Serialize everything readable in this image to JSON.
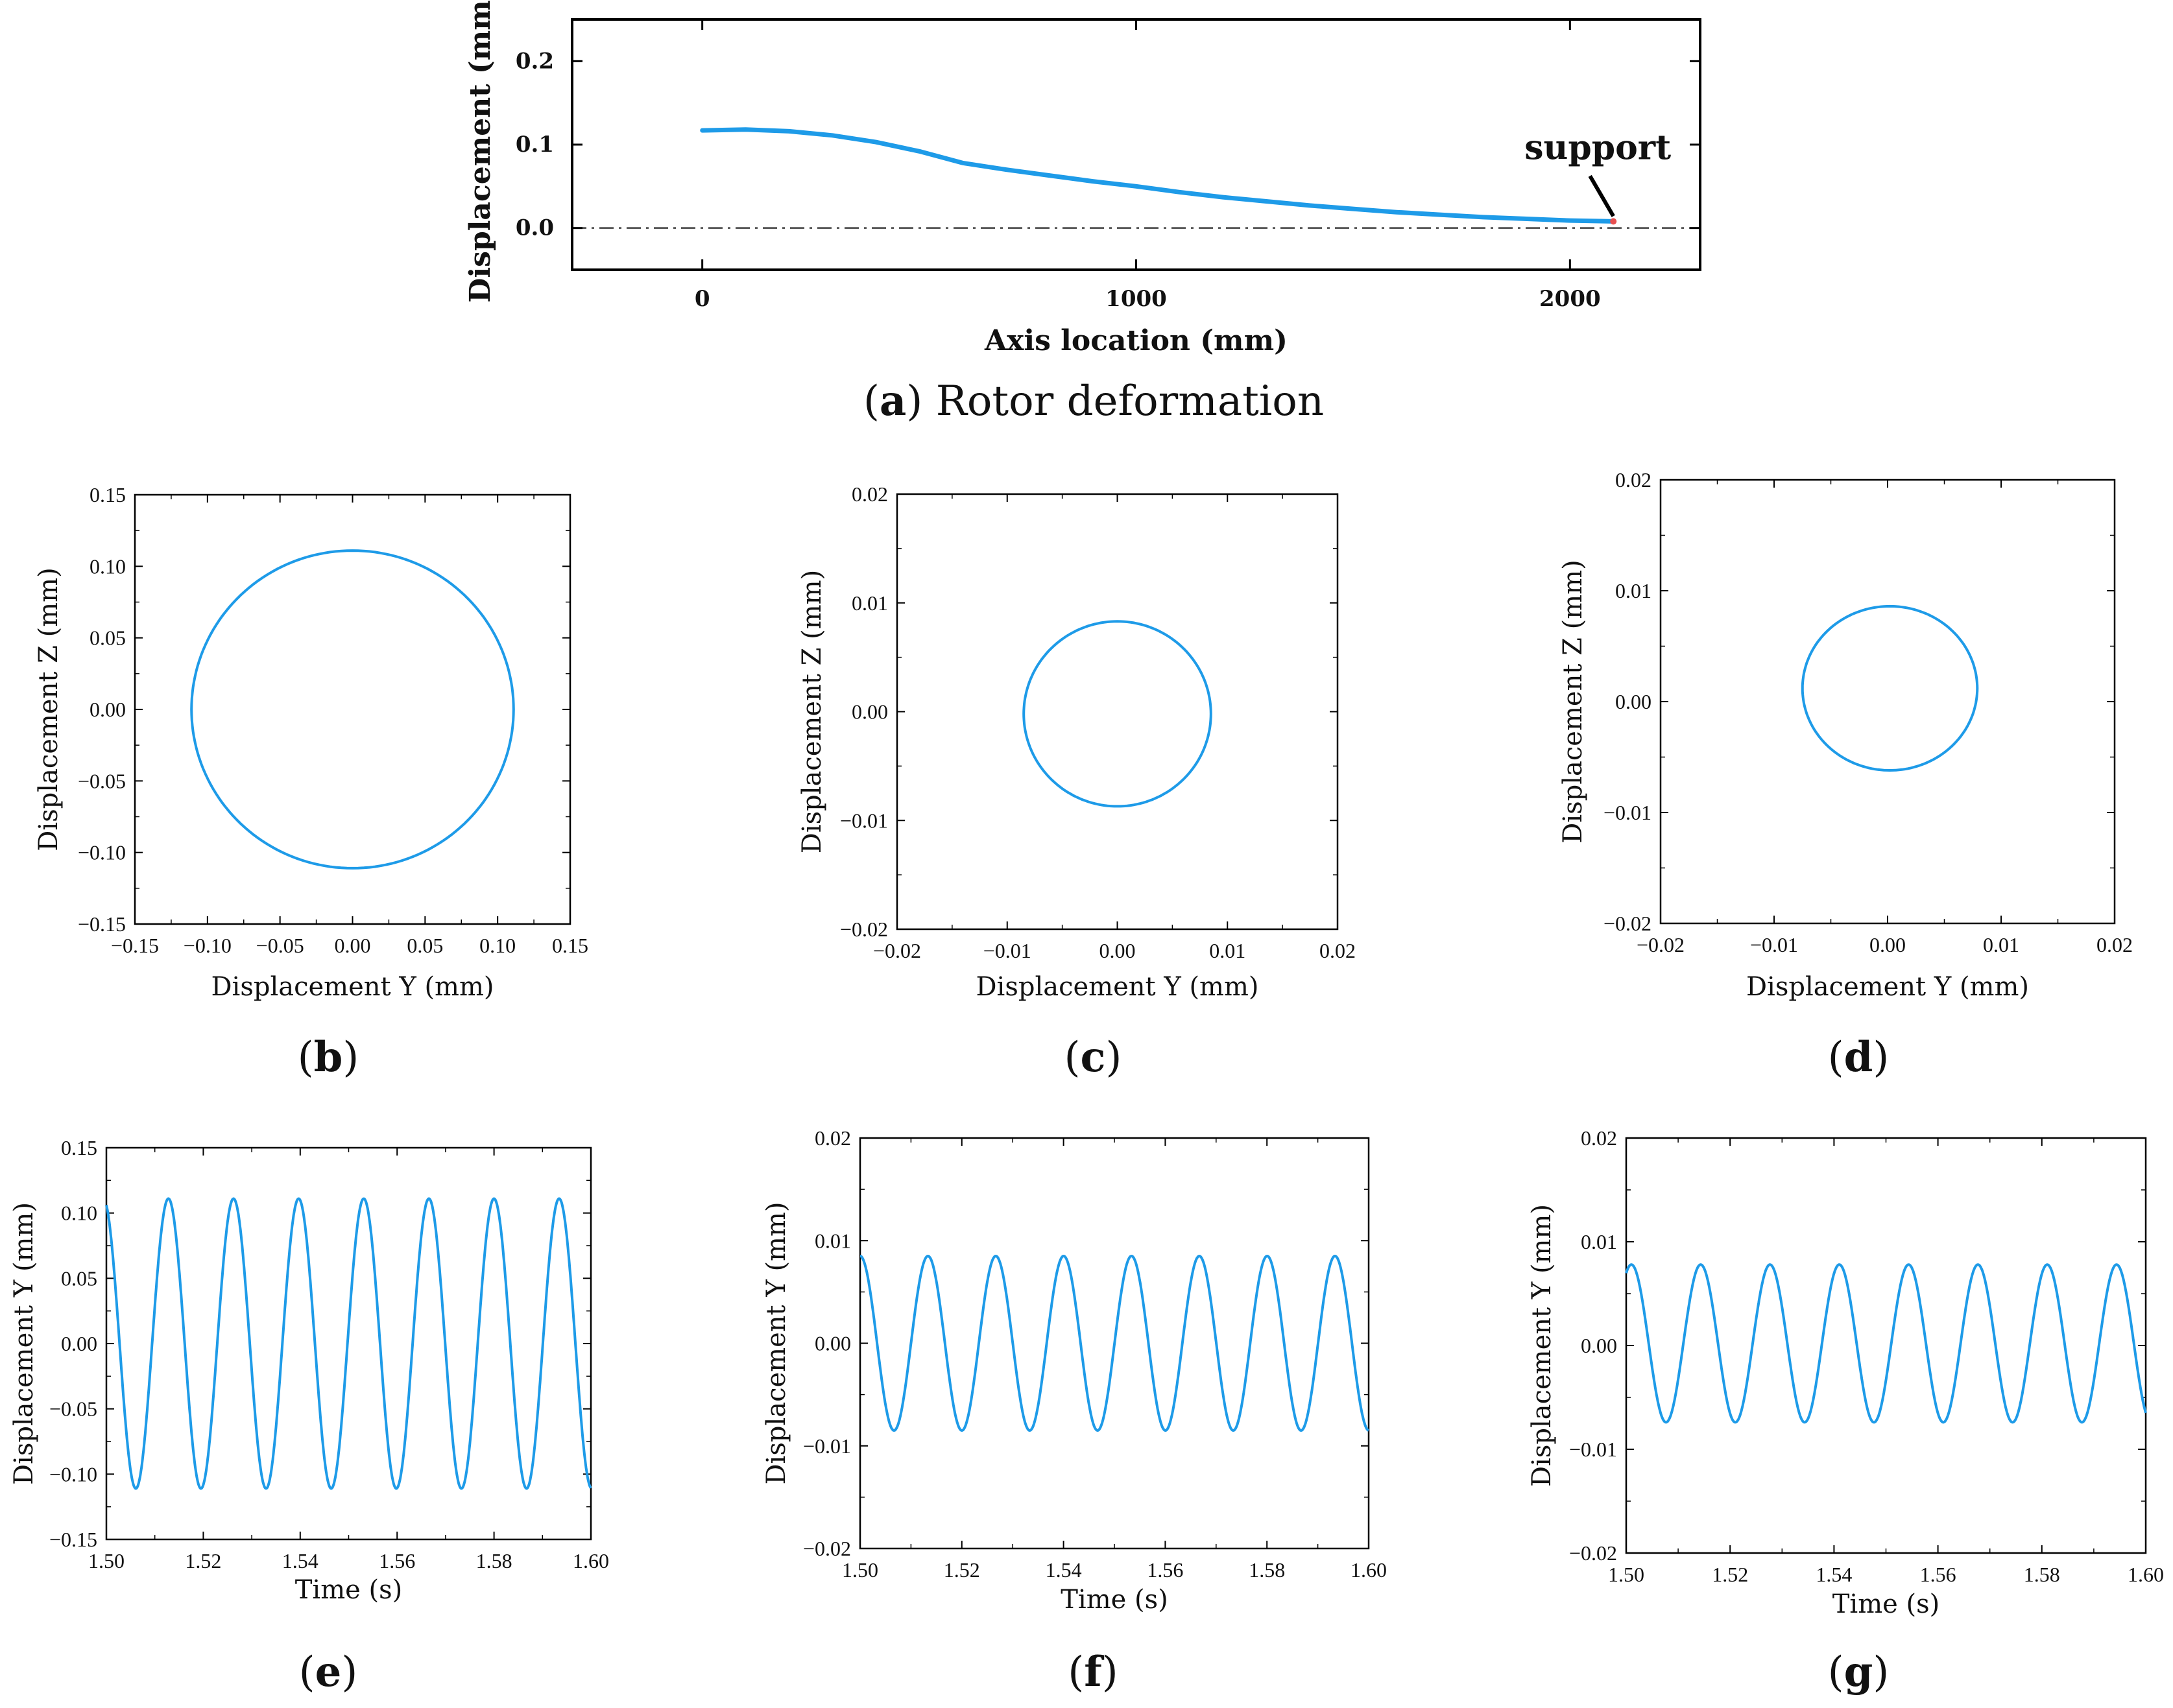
{
  "chart_data": [
    {
      "id": "a",
      "type": "line",
      "title": "Rotor deformation",
      "caption": {
        "label": "a",
        "text": "Rotor deformation"
      },
      "xlabel": "Axis location (mm)",
      "ylabel": "Displacement (mm)",
      "xlim": [
        -300,
        2300
      ],
      "ylim": [
        -0.05,
        0.25
      ],
      "xticks": [
        0,
        1000,
        2000
      ],
      "xtick_labels": [
        "0",
        "1000",
        "2000"
      ],
      "yticks": [
        0.0,
        0.1,
        0.2
      ],
      "ytick_labels": [
        "0.0",
        "0.1",
        "0.2"
      ],
      "series": [
        {
          "name": "deformation",
          "color": "#1E9BE8",
          "x": [
            0,
            100,
            200,
            300,
            400,
            500,
            600,
            700,
            800,
            900,
            1000,
            1100,
            1200,
            1300,
            1400,
            1500,
            1600,
            1700,
            1800,
            1900,
            2000,
            2100
          ],
          "y": [
            0.117,
            0.118,
            0.116,
            0.111,
            0.103,
            0.092,
            0.078,
            0.07,
            0.063,
            0.056,
            0.05,
            0.043,
            0.037,
            0.032,
            0.027,
            0.023,
            0.019,
            0.016,
            0.013,
            0.011,
            0.009,
            0.008
          ]
        }
      ],
      "reference_line": {
        "y": 0.0,
        "style": "dash-dot"
      },
      "annotation": {
        "text": "support",
        "x": 2100,
        "y": 0.008
      }
    },
    {
      "id": "b",
      "type": "line",
      "caption": {
        "label": "b"
      },
      "xlabel": "Displacement Y (mm)",
      "ylabel": "Displacement Z (mm)",
      "xlim": [
        -0.15,
        0.15
      ],
      "ylim": [
        -0.15,
        0.15
      ],
      "xticks": [
        -0.15,
        -0.1,
        -0.05,
        0.0,
        0.05,
        0.1,
        0.15
      ],
      "xtick_labels": [
        "−0.15",
        "−0.10",
        "−0.05",
        "0.00",
        "0.05",
        "0.10",
        "0.15"
      ],
      "yticks": [
        -0.15,
        -0.1,
        -0.05,
        0.0,
        0.05,
        0.1,
        0.15
      ],
      "ytick_labels": [
        "−0.15",
        "−0.10",
        "−0.05",
        "0.00",
        "0.05",
        "0.10",
        "0.15"
      ],
      "orbit": {
        "cy": 0.0,
        "cz": 0.0,
        "ry": 0.111,
        "rz": 0.111
      },
      "color": "#1E9BE8"
    },
    {
      "id": "c",
      "type": "line",
      "caption": {
        "label": "c"
      },
      "xlabel": "Displacement Y (mm)",
      "ylabel": "Displacement Z (mm)",
      "xlim": [
        -0.02,
        0.02
      ],
      "ylim": [
        -0.02,
        0.02
      ],
      "xticks": [
        -0.02,
        -0.01,
        0.0,
        0.01,
        0.02
      ],
      "xtick_labels": [
        "−0.02",
        "−0.01",
        "0.00",
        "0.01",
        "0.02"
      ],
      "yticks": [
        -0.02,
        -0.01,
        0.0,
        0.01,
        0.02
      ],
      "ytick_labels": [
        "−0.02",
        "−0.01",
        "0.00",
        "0.01",
        "0.02"
      ],
      "orbit": {
        "cy": 0.0,
        "cz": -0.0002,
        "ry": 0.0085,
        "rz": 0.0085
      },
      "color": "#1E9BE8"
    },
    {
      "id": "d",
      "type": "line",
      "caption": {
        "label": "d"
      },
      "xlabel": "Displacement Y (mm)",
      "ylabel": "Displacement Z (mm)",
      "xlim": [
        -0.02,
        0.02
      ],
      "ylim": [
        -0.02,
        0.02
      ],
      "xticks": [
        -0.02,
        -0.01,
        0.0,
        0.01,
        0.02
      ],
      "xtick_labels": [
        "−0.02",
        "−0.01",
        "0.00",
        "0.01",
        "0.02"
      ],
      "yticks": [
        -0.02,
        -0.01,
        0.0,
        0.01,
        0.02
      ],
      "ytick_labels": [
        "−0.02",
        "−0.01",
        "0.00",
        "0.01",
        "0.02"
      ],
      "orbit": {
        "cy": 0.0002,
        "cz": 0.0012,
        "ry": 0.0077,
        "rz": 0.0074
      },
      "color": "#1E9BE8"
    },
    {
      "id": "e",
      "type": "line",
      "caption": {
        "label": "e"
      },
      "xlabel": "Time (s)",
      "ylabel": "Displacement Y (mm)",
      "xlim": [
        1.5,
        1.6
      ],
      "ylim": [
        -0.15,
        0.15
      ],
      "xticks": [
        1.5,
        1.52,
        1.54,
        1.56,
        1.58,
        1.6
      ],
      "xtick_labels": [
        "1.50",
        "1.52",
        "1.54",
        "1.56",
        "1.58",
        "1.60"
      ],
      "yticks": [
        -0.15,
        -0.1,
        -0.05,
        0.0,
        0.05,
        0.1,
        0.15
      ],
      "ytick_labels": [
        "−0.15",
        "−0.10",
        "−0.05",
        "0.00",
        "0.05",
        "0.10",
        "0.15"
      ],
      "wave": {
        "offset": 0.0,
        "amplitude": 0.111,
        "first_peak": 1.5128,
        "period": 0.01344
      },
      "color": "#1E9BE8"
    },
    {
      "id": "f",
      "type": "line",
      "caption": {
        "label": "f"
      },
      "xlabel": "Time (s)",
      "ylabel": "Displacement Y (mm)",
      "xlim": [
        1.5,
        1.6
      ],
      "ylim": [
        -0.02,
        0.02
      ],
      "xticks": [
        1.5,
        1.52,
        1.54,
        1.56,
        1.58,
        1.6
      ],
      "xtick_labels": [
        "1.50",
        "1.52",
        "1.54",
        "1.56",
        "1.58",
        "1.60"
      ],
      "yticks": [
        -0.02,
        -0.01,
        0.0,
        0.01,
        0.02
      ],
      "ytick_labels": [
        "−0.02",
        "−0.01",
        "0.00",
        "0.01",
        "0.02"
      ],
      "wave": {
        "offset": 0.0,
        "amplitude": 0.0085,
        "first_peak": 1.5,
        "period": 0.01334
      },
      "color": "#1E9BE8"
    },
    {
      "id": "g",
      "type": "line",
      "caption": {
        "label": "g"
      },
      "xlabel": "Time (s)",
      "ylabel": "Displacement Y (mm)",
      "xlim": [
        1.5,
        1.6
      ],
      "ylim": [
        -0.02,
        0.02
      ],
      "xticks": [
        1.5,
        1.52,
        1.54,
        1.56,
        1.58,
        1.6
      ],
      "xtick_labels": [
        "1.50",
        "1.52",
        "1.54",
        "1.56",
        "1.58",
        "1.60"
      ],
      "yticks": [
        -0.02,
        -0.01,
        0.0,
        0.01,
        0.02
      ],
      "ytick_labels": [
        "−0.02",
        "−0.01",
        "0.00",
        "0.01",
        "0.02"
      ],
      "wave": {
        "offset": 0.0002,
        "amplitude": 0.0076,
        "first_peak": 1.501,
        "period": 0.01334
      },
      "color": "#1E9BE8"
    }
  ]
}
